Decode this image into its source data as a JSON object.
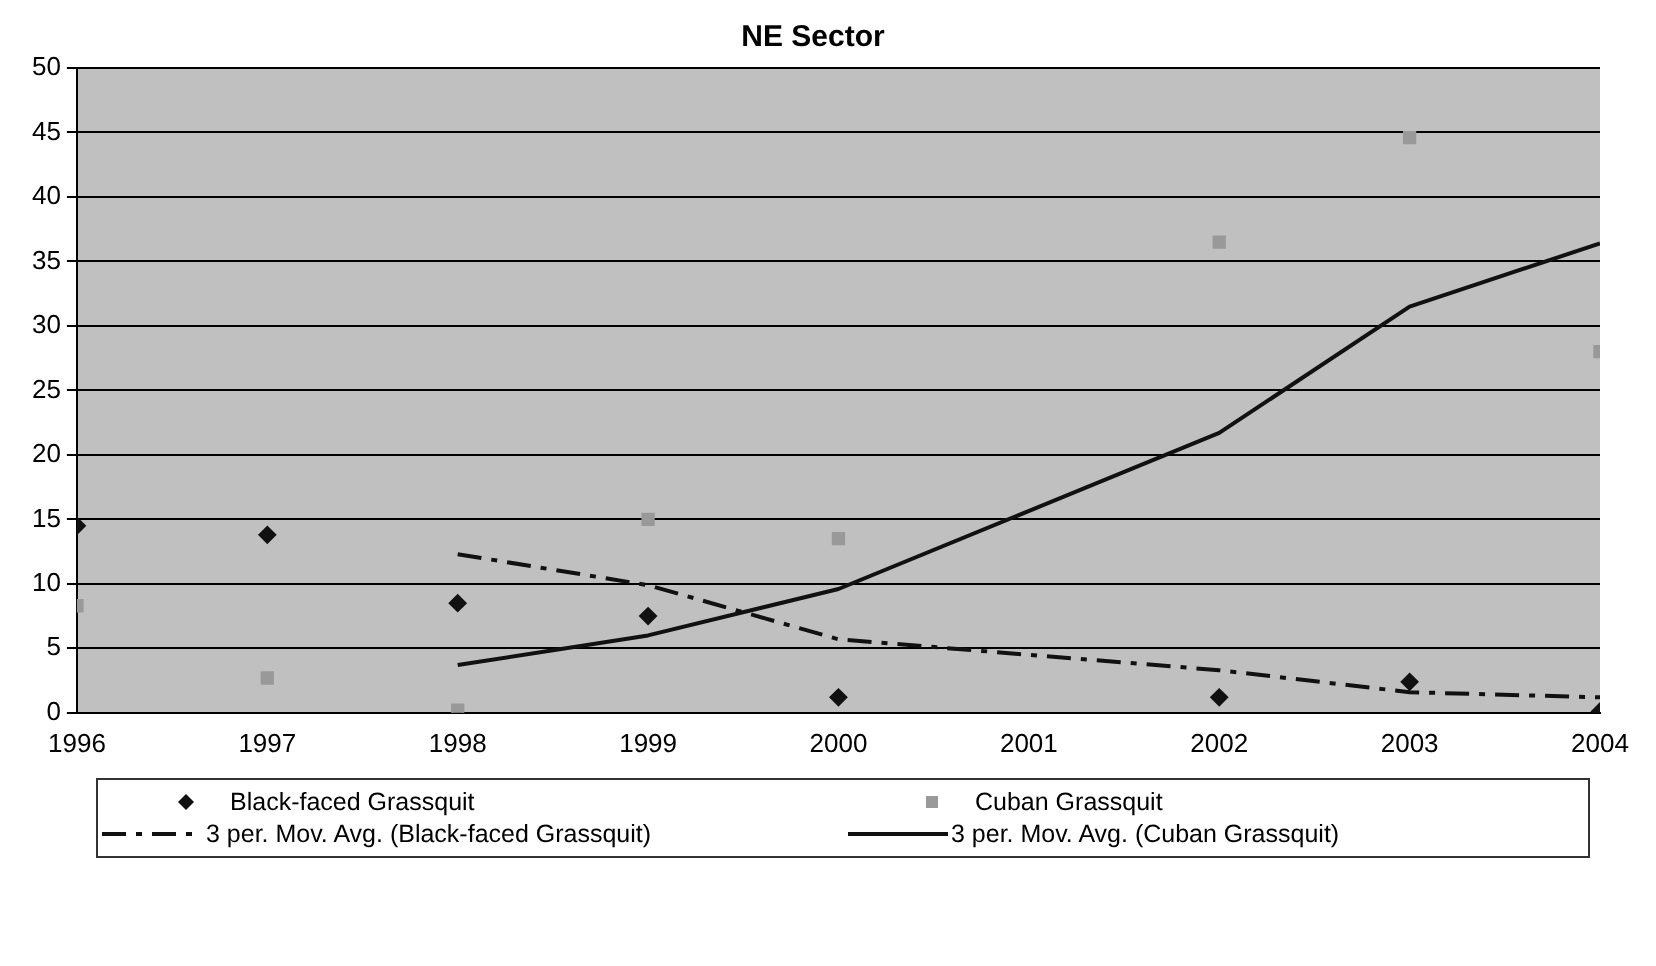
{
  "chart_data": {
    "type": "line",
    "title": "NE Sector",
    "xlim": [
      1996,
      2004
    ],
    "xticks": [
      1996,
      1997,
      1998,
      1999,
      2000,
      2001,
      2002,
      2003,
      2004
    ],
    "ylim": [
      0,
      50
    ],
    "yticks": [
      0,
      5,
      10,
      15,
      20,
      25,
      30,
      35,
      40,
      45,
      50
    ],
    "grid": "y",
    "legend": "bottom",
    "series": [
      {
        "name": "Black-faced Grassquit",
        "type": "scatter",
        "marker": "diamond",
        "color": "#111111",
        "x": [
          1996,
          1997,
          1998,
          1999,
          2000,
          2002,
          2003,
          2004
        ],
        "values": [
          14.5,
          13.8,
          8.5,
          7.5,
          1.2,
          1.2,
          2.4,
          0.1
        ]
      },
      {
        "name": "Cuban Grassquit",
        "type": "scatter",
        "marker": "square",
        "color": "#999999",
        "x": [
          1996,
          1997,
          1998,
          1999,
          2000,
          2002,
          2003,
          2004
        ],
        "values": [
          8.3,
          2.7,
          0.2,
          15,
          13.5,
          36.5,
          44.6,
          28
        ]
      },
      {
        "name": "3 per. Mov. Avg. (Black-faced Grassquit)",
        "type": "line",
        "line_style": "dashed",
        "marker": "none",
        "color": "#111111",
        "x": [
          1998,
          1999,
          2000,
          2002,
          2003,
          2004
        ],
        "values": [
          12.3,
          9.9,
          5.7,
          3.3,
          1.6,
          1.2
        ]
      },
      {
        "name": "3 per. Mov. Avg. (Cuban Grassquit)",
        "type": "line",
        "line_style": "solid",
        "marker": "none",
        "color": "#111111",
        "x": [
          1998,
          1999,
          2000,
          2002,
          2003,
          2004
        ],
        "values": [
          3.7,
          6.0,
          9.6,
          21.7,
          31.5,
          36.4
        ]
      }
    ]
  }
}
